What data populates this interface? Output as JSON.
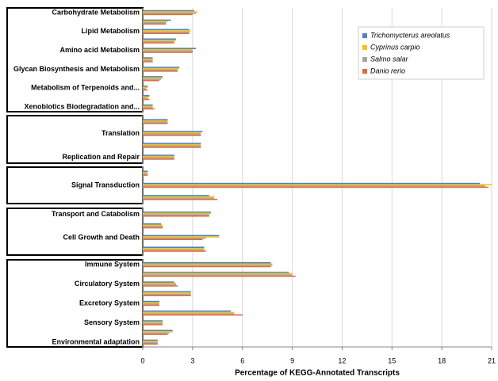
{
  "chart_data": {
    "type": "bar",
    "orientation": "horizontal",
    "x_label": "Percentage of KEGG-Annotated Transcripts",
    "categories": [
      "Carbohydrate Metabolism",
      null,
      "Lipid Metabolism",
      null,
      "Amino acid Metabolism",
      null,
      "Glycan Biosynthesis and Metabolism",
      null,
      "Metabolism of Terpenoids and...",
      null,
      "Xenobiotics Biodegradation and...",
      null,
      "Translation",
      null,
      "Replication and Repair",
      null,
      "Signal Transduction",
      null,
      "Transport and Catabolism",
      null,
      "Cell Growth and Death",
      null,
      "Immune System",
      null,
      "Circulatory System",
      null,
      "Excretory System",
      null,
      "Sensory System",
      null,
      "Environmental adaptation"
    ],
    "series": [
      {
        "name": "Trichomycterus areolatus",
        "color": "#4f81bd",
        "values": [
          3.1,
          1.7,
          2.8,
          2.0,
          3.2,
          0.6,
          2.2,
          1.2,
          0.3,
          0.4,
          0.6,
          1.5,
          3.6,
          3.5,
          1.9,
          0.3,
          20.3,
          4.0,
          4.1,
          1.1,
          4.6,
          3.7,
          7.7,
          8.8,
          1.9,
          2.9,
          1.0,
          5.3,
          1.2,
          1.8,
          0.9
        ]
      },
      {
        "name": "Cyprinus carpio",
        "color": "#f2c314",
        "values": [
          3.3,
          1.5,
          2.9,
          2.0,
          3.0,
          0.6,
          2.2,
          1.2,
          0.3,
          0.4,
          0.6,
          1.5,
          3.5,
          3.5,
          1.9,
          0.3,
          21.0,
          4.3,
          4.1,
          1.2,
          4.6,
          3.7,
          7.8,
          9.0,
          2.0,
          2.9,
          1.0,
          5.5,
          1.2,
          1.8,
          0.9
        ]
      },
      {
        "name": "Salmo salar",
        "color": "#a5a5a5",
        "values": [
          3.2,
          1.4,
          2.8,
          1.9,
          3.0,
          0.6,
          2.1,
          1.1,
          0.2,
          0.3,
          0.6,
          1.5,
          3.5,
          3.5,
          1.9,
          0.3,
          20.6,
          4.3,
          4.0,
          1.2,
          3.8,
          3.7,
          7.8,
          9.0,
          2.0,
          2.9,
          1.0,
          5.5,
          1.2,
          1.6,
          0.9
        ]
      },
      {
        "name": "Danio rerio",
        "color": "#e46c3a",
        "values": [
          3.0,
          1.4,
          2.8,
          1.9,
          3.0,
          0.6,
          2.1,
          1.0,
          0.3,
          0.4,
          0.7,
          1.5,
          3.5,
          3.5,
          1.9,
          0.3,
          20.8,
          4.5,
          4.0,
          1.2,
          3.6,
          3.8,
          7.7,
          9.2,
          2.1,
          2.9,
          1.0,
          6.0,
          1.2,
          1.5,
          0.9
        ]
      }
    ],
    "xlim": [
      0,
      21
    ],
    "xticks": [
      0,
      3,
      6,
      9,
      12,
      15,
      18,
      21
    ],
    "grid": true,
    "legend": "upper right"
  }
}
